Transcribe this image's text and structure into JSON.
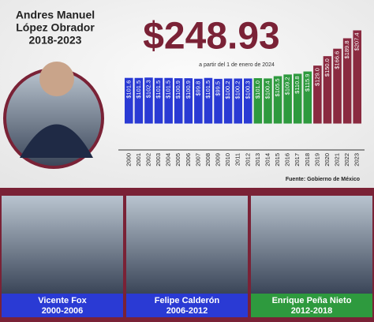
{
  "chart_data": {
    "type": "bar",
    "title_lines": [
      "Andres Manuel",
      "López Obrador",
      "2018-2023"
    ],
    "headline": "$248.93",
    "subtitle": "a partir del 1 de enero de 2024",
    "source": "Fuente: Gobierno de México",
    "categories": [
      "2000",
      "2001",
      "2002",
      "2003",
      "2004",
      "2005",
      "2006",
      "2007",
      "2008",
      "2009",
      "2010",
      "2011",
      "2012",
      "2013",
      "2014",
      "2015",
      "2016",
      "2017",
      "2018",
      "2019",
      "2020",
      "2021",
      "2022",
      "2023"
    ],
    "values": [
      101.6,
      101.5,
      102.3,
      101.5,
      101.5,
      100.9,
      100.9,
      99.8,
      101.5,
      99.5,
      100.2,
      100.2,
      100.3,
      101.0,
      100.4,
      105.5,
      109.2,
      110.8,
      115.9,
      129.0,
      150.0,
      166.6,
      189.8,
      207.4
    ],
    "value_labels": [
      "$101.6",
      "$101.5",
      "$102.3",
      "$101.5",
      "$101.5",
      "$100.9",
      "$100.9",
      "$99.8",
      "$101.5",
      "$99.5",
      "$100.2",
      "$100.2",
      "$100.3",
      "$101.0",
      "$100.4",
      "$105.5",
      "$109.2",
      "$110.8",
      "$115.9",
      "$129.0",
      "$150.0",
      "$166.6",
      "$189.8",
      "$207.4"
    ],
    "colors": [
      "#2a3ad4",
      "#2a3ad4",
      "#2a3ad4",
      "#2a3ad4",
      "#2a3ad4",
      "#2a3ad4",
      "#2a3ad4",
      "#2a3ad4",
      "#2a3ad4",
      "#2a3ad4",
      "#2a3ad4",
      "#2a3ad4",
      "#2a3ad4",
      "#2e9a3e",
      "#2e9a3e",
      "#2e9a3e",
      "#2e9a3e",
      "#2e9a3e",
      "#2e9a3e",
      "#8a2a40",
      "#8a2a40",
      "#8a2a40",
      "#8a2a40",
      "#8a2a40"
    ],
    "ylim": [
      -50,
      210
    ],
    "panels": [
      {
        "name": "Vicente Fox",
        "term": "2000-2006",
        "color": "#2a3ad4"
      },
      {
        "name": "Felipe Calderón",
        "term": "2006-2012",
        "color": "#2a3ad4"
      },
      {
        "name": "Enrique Peña Nieto",
        "term": "2012-2018",
        "color": "#2e9a3e"
      }
    ]
  }
}
